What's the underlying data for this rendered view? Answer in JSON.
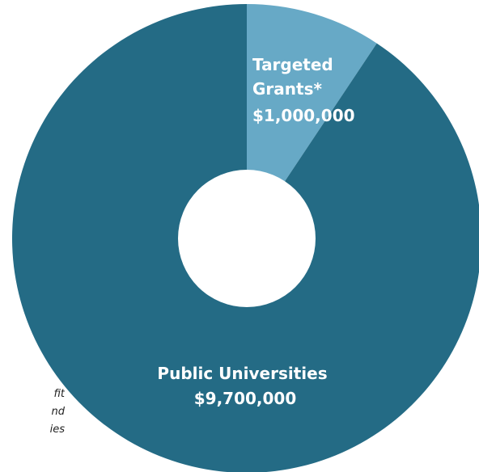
{
  "chart_data": {
    "type": "pie",
    "donut": true,
    "slices": [
      {
        "label_lines": [
          "Targeted",
          "Grants*",
          "$1,000,000"
        ],
        "value": 1000000,
        "color": "#67a9c6"
      },
      {
        "label_lines": [
          "Public Universities",
          "$9,700,000"
        ],
        "value": 9700000,
        "color": "#246b85"
      }
    ]
  },
  "footnote_fragments": [
    "fit",
    "nd",
    "ies"
  ]
}
